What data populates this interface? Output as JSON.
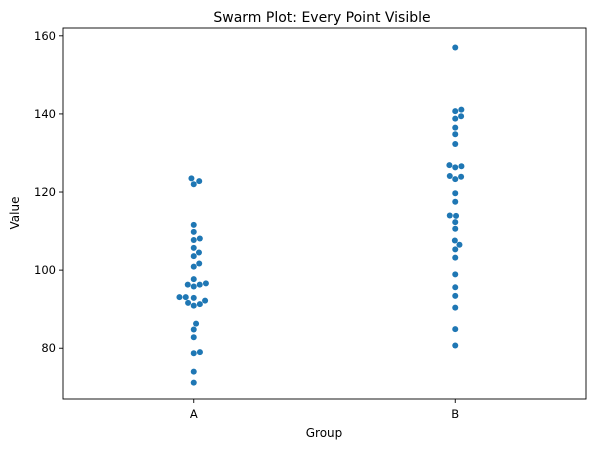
{
  "chart_data": {
    "type": "scatter",
    "subtype": "swarm",
    "title": "Swarm Plot: Every Point Visible",
    "xlabel": "Group",
    "ylabel": "Value",
    "categories": [
      "A",
      "B"
    ],
    "ylim": [
      67,
      162
    ],
    "yticks": [
      80,
      100,
      120,
      140,
      160
    ],
    "point_color": "#1f77b4",
    "grid": false,
    "series": [
      {
        "category": "A",
        "values": [
          71.2,
          74.0,
          78.7,
          79.0,
          82.8,
          84.8,
          86.3,
          90.9,
          91.3,
          91.6,
          92.2,
          92.9,
          93.1,
          93.1,
          95.8,
          96.3,
          96.3,
          96.6,
          97.7,
          100.9,
          101.7,
          103.6,
          104.5,
          105.7,
          107.7,
          108.1,
          109.8,
          111.6,
          122.0,
          122.8,
          123.5
        ]
      },
      {
        "category": "B",
        "values": [
          80.7,
          84.9,
          90.4,
          93.4,
          95.6,
          98.9,
          103.2,
          105.3,
          106.5,
          107.6,
          110.6,
          112.3,
          113.9,
          114.0,
          117.5,
          119.7,
          123.3,
          123.9,
          124.1,
          126.3,
          126.6,
          126.9,
          132.3,
          134.8,
          136.5,
          138.8,
          139.4,
          140.7,
          141.1,
          157.0
        ]
      }
    ]
  }
}
